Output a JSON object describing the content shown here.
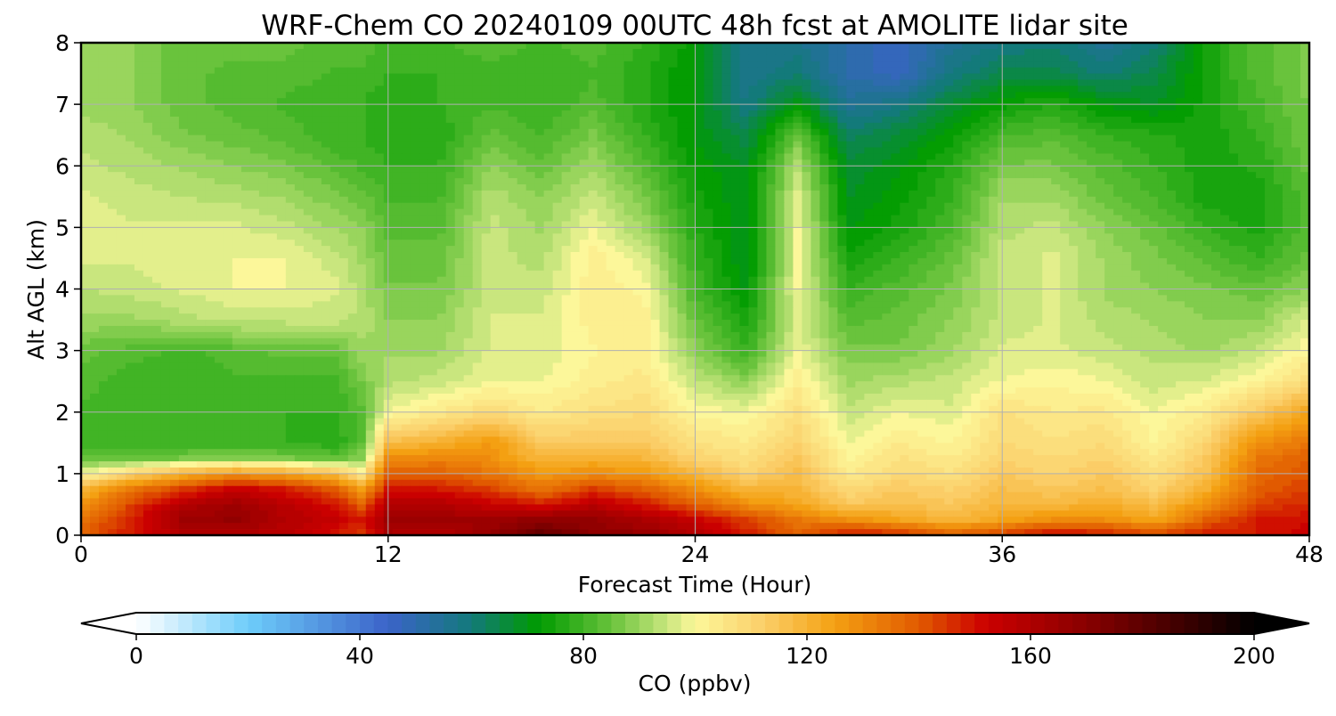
{
  "chart_data": {
    "type": "heatmap",
    "title": "WRF-Chem CO  20240109 00UTC 48h fcst at AMOLITE lidar site",
    "xlabel": "Forecast Time (Hour)",
    "ylabel": "Alt AGL (km)",
    "xlim": [
      0,
      48
    ],
    "ylim": [
      0,
      8
    ],
    "xticks": [
      "0",
      "12",
      "24",
      "36",
      "48"
    ],
    "yticks": [
      "0",
      "1",
      "2",
      "3",
      "4",
      "5",
      "6",
      "7",
      "8"
    ],
    "grid": true,
    "colorbar": {
      "label": "CO  (ppbv)",
      "min": 0,
      "max": 200,
      "ticks": [
        "0",
        "40",
        "80",
        "120",
        "160",
        "200"
      ],
      "extend": "both",
      "stops": [
        {
          "v": 0,
          "c": "#ffffff"
        },
        {
          "v": 20,
          "c": "#6ecdfa"
        },
        {
          "v": 45,
          "c": "#3b63c8"
        },
        {
          "v": 60,
          "c": "#137a7a"
        },
        {
          "v": 72,
          "c": "#009b00"
        },
        {
          "v": 85,
          "c": "#69c33c"
        },
        {
          "v": 95,
          "c": "#c9e67e"
        },
        {
          "v": 100,
          "c": "#fcf79a"
        },
        {
          "v": 112,
          "c": "#fbcf6a"
        },
        {
          "v": 125,
          "c": "#f4a012"
        },
        {
          "v": 140,
          "c": "#e15a00"
        },
        {
          "v": 152,
          "c": "#cc0000"
        },
        {
          "v": 170,
          "c": "#880000"
        },
        {
          "v": 190,
          "c": "#300000"
        },
        {
          "v": 200,
          "c": "#000000"
        }
      ]
    },
    "x_hours": [
      0,
      2,
      4,
      6,
      8,
      10,
      11,
      12,
      14,
      16,
      18,
      20,
      22,
      24,
      26,
      28,
      30,
      32,
      34,
      36,
      38,
      40,
      42,
      44,
      46,
      48
    ],
    "y_km": [
      0,
      0.25,
      0.5,
      0.75,
      1,
      1.25,
      1.5,
      2,
      2.5,
      3,
      3.5,
      4,
      4.5,
      5,
      5.5,
      6,
      6.5,
      7,
      7.5,
      8
    ],
    "values_ppbv": [
      [
        140,
        150,
        160,
        160,
        158,
        150,
        145,
        162,
        160,
        168,
        180,
        170,
        168,
        160,
        150,
        140,
        152,
        148,
        140,
        145,
        155,
        150,
        145,
        150,
        150,
        155
      ],
      [
        135,
        150,
        165,
        168,
        160,
        155,
        150,
        165,
        165,
        165,
        170,
        168,
        162,
        155,
        145,
        135,
        130,
        125,
        120,
        125,
        130,
        130,
        125,
        140,
        150,
        152
      ],
      [
        128,
        145,
        160,
        165,
        158,
        150,
        140,
        160,
        160,
        155,
        150,
        158,
        150,
        140,
        130,
        125,
        115,
        118,
        115,
        120,
        120,
        122,
        118,
        130,
        145,
        148
      ],
      [
        120,
        135,
        145,
        155,
        150,
        140,
        125,
        150,
        150,
        145,
        135,
        145,
        140,
        130,
        120,
        120,
        110,
        115,
        112,
        118,
        115,
        118,
        112,
        122,
        140,
        145
      ],
      [
        100,
        112,
        122,
        128,
        125,
        118,
        105,
        140,
        140,
        135,
        128,
        130,
        128,
        120,
        112,
        118,
        105,
        110,
        108,
        115,
        112,
        115,
        108,
        118,
        138,
        142
      ],
      [
        85,
        85,
        88,
        90,
        88,
        85,
        90,
        130,
        132,
        130,
        120,
        122,
        120,
        112,
        108,
        116,
        102,
        108,
        105,
        112,
        110,
        112,
        105,
        115,
        135,
        140
      ],
      [
        82,
        80,
        80,
        80,
        80,
        78,
        85,
        118,
        122,
        128,
        115,
        115,
        115,
        108,
        105,
        112,
        100,
        105,
        102,
        110,
        108,
        110,
        102,
        112,
        130,
        135
      ],
      [
        82,
        80,
        80,
        80,
        80,
        80,
        84,
        100,
        105,
        110,
        105,
        108,
        110,
        102,
        100,
        108,
        96,
        100,
        98,
        108,
        105,
        106,
        100,
        105,
        115,
        125
      ],
      [
        84,
        80,
        80,
        82,
        82,
        82,
        88,
        94,
        96,
        100,
        100,
        104,
        106,
        96,
        90,
        104,
        92,
        94,
        96,
        100,
        102,
        100,
        96,
        98,
        102,
        110
      ],
      [
        86,
        84,
        82,
        84,
        86,
        86,
        92,
        92,
        92,
        98,
        98,
        102,
        104,
        90,
        80,
        100,
        88,
        88,
        92,
        98,
        98,
        96,
        94,
        92,
        96,
        102
      ],
      [
        92,
        92,
        94,
        96,
        96,
        96,
        94,
        90,
        90,
        98,
        98,
        104,
        104,
        86,
        76,
        98,
        84,
        86,
        90,
        96,
        98,
        94,
        92,
        90,
        90,
        98
      ],
      [
        95,
        96,
        98,
        100,
        100,
        98,
        94,
        88,
        88,
        96,
        96,
        104,
        102,
        82,
        72,
        100,
        80,
        84,
        88,
        96,
        98,
        92,
        90,
        88,
        86,
        90
      ],
      [
        98,
        98,
        100,
        100,
        100,
        96,
        92,
        86,
        86,
        96,
        94,
        104,
        98,
        80,
        70,
        100,
        76,
        80,
        86,
        96,
        98,
        92,
        88,
        84,
        80,
        86
      ],
      [
        100,
        98,
        98,
        98,
        96,
        92,
        90,
        84,
        84,
        96,
        92,
        100,
        92,
        78,
        70,
        100,
        72,
        76,
        82,
        94,
        96,
        90,
        86,
        80,
        76,
        84
      ],
      [
        98,
        96,
        95,
        94,
        92,
        88,
        86,
        82,
        82,
        94,
        90,
        96,
        88,
        76,
        70,
        98,
        70,
        74,
        80,
        92,
        92,
        86,
        82,
        76,
        76,
        84
      ],
      [
        96,
        94,
        92,
        90,
        88,
        84,
        82,
        80,
        80,
        90,
        86,
        92,
        84,
        74,
        70,
        94,
        68,
        72,
        78,
        88,
        88,
        84,
        80,
        76,
        78,
        86
      ],
      [
        94,
        92,
        88,
        86,
        84,
        80,
        80,
        78,
        78,
        86,
        82,
        88,
        80,
        72,
        66,
        86,
        64,
        68,
        74,
        82,
        84,
        80,
        78,
        76,
        80,
        88
      ],
      [
        92,
        90,
        86,
        84,
        82,
        80,
        80,
        78,
        80,
        82,
        80,
        84,
        78,
        72,
        60,
        72,
        56,
        60,
        68,
        74,
        78,
        72,
        70,
        76,
        82,
        88
      ],
      [
        92,
        90,
        86,
        84,
        84,
        82,
        82,
        80,
        80,
        82,
        80,
        82,
        78,
        72,
        58,
        62,
        52,
        48,
        60,
        66,
        66,
        62,
        66,
        76,
        84,
        88
      ],
      [
        92,
        90,
        86,
        86,
        86,
        84,
        84,
        82,
        82,
        84,
        82,
        84,
        80,
        74,
        58,
        58,
        52,
        48,
        56,
        60,
        62,
        56,
        62,
        76,
        84,
        88
      ]
    ]
  }
}
